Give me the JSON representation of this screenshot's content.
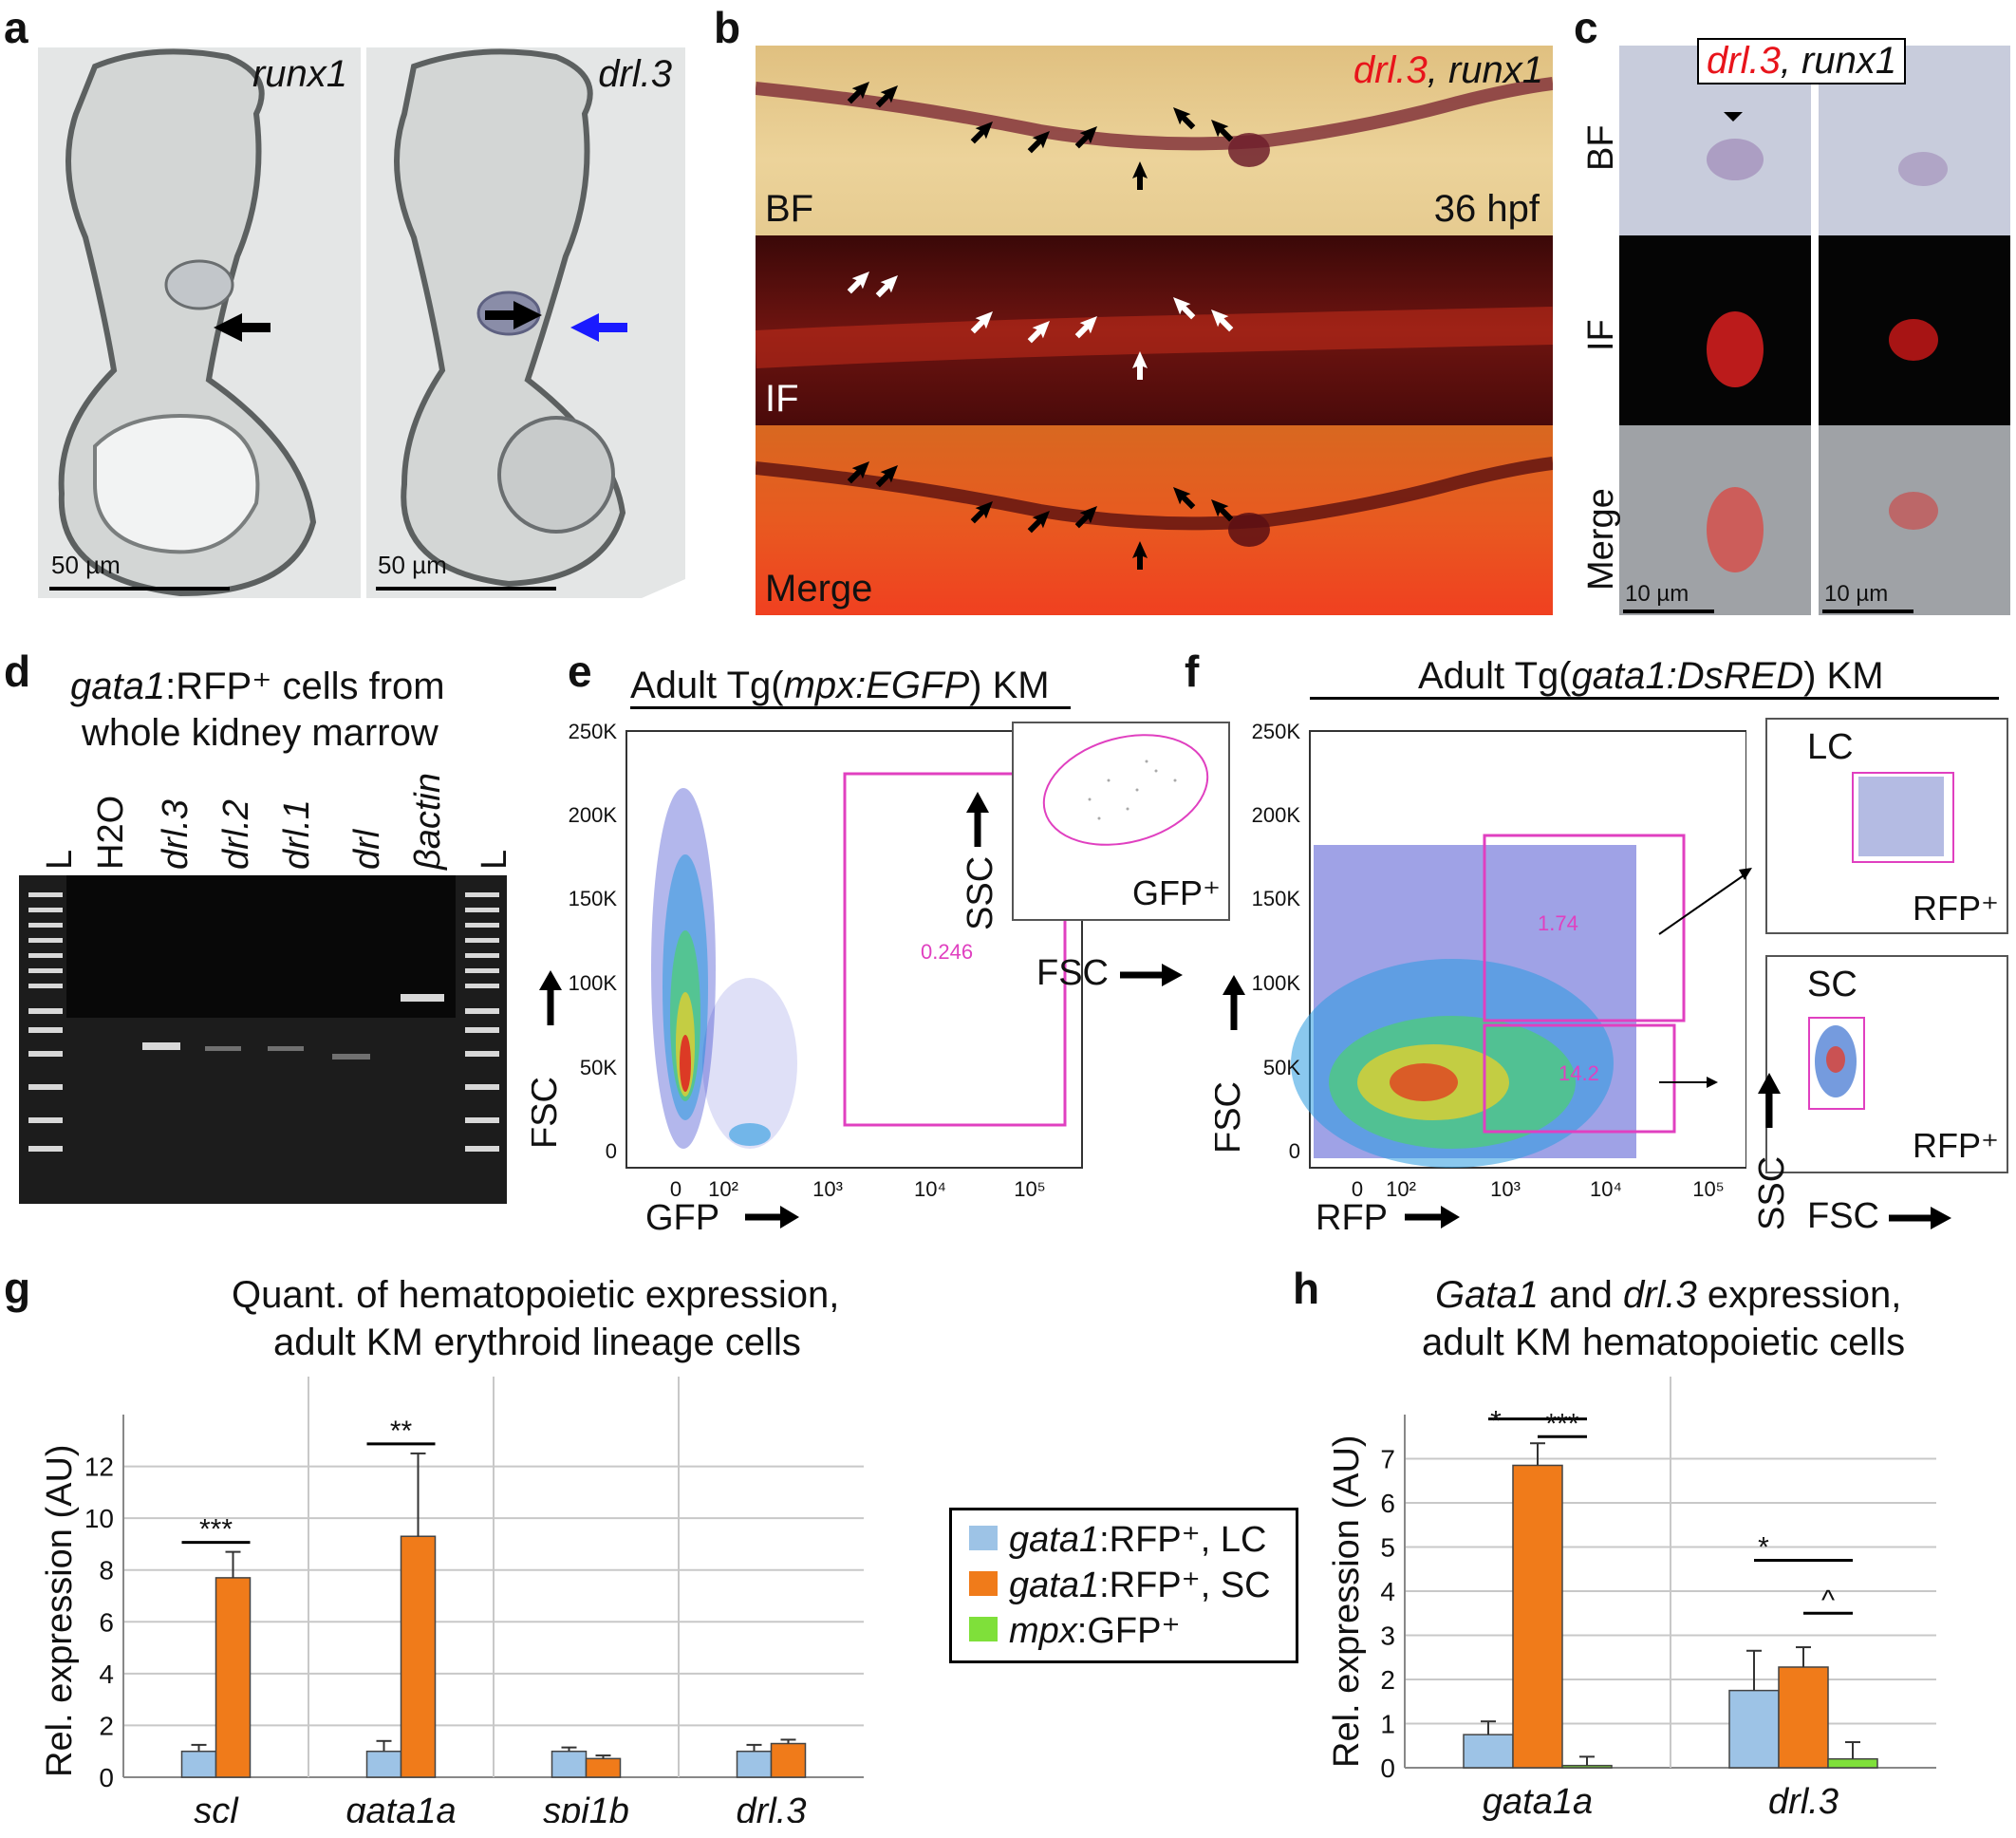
{
  "panel_labels": {
    "a": "a",
    "b": "b",
    "c": "c",
    "d": "d",
    "e": "e",
    "f": "f",
    "g": "g",
    "h": "h"
  },
  "panel_a": {
    "left_label": "runx1",
    "right_label": "drl.3",
    "scale_left": "50 µm",
    "scale_right": "50 µm"
  },
  "panel_b": {
    "title_red": "drl.3",
    "title_sep": ", ",
    "title_black": "runx1",
    "bf": "BF",
    "hpf": "36 hpf",
    "if": "IF",
    "merge": "Merge"
  },
  "panel_c": {
    "title_red": "drl.3",
    "title_sep": ", ",
    "title_black": "runx1",
    "row_bf": "BF",
    "row_if": "IF",
    "row_merge": "Merge",
    "scale_left": "10 µm",
    "scale_right": "10 µm"
  },
  "panel_d": {
    "title_it": "gata1",
    "title_rest": ":RFP⁺ cells from",
    "title_line2": "whole kidney marrow",
    "lanes": [
      "L",
      "H2O",
      "drl.3",
      "drl.2",
      "drl.1",
      "drl",
      "βactin",
      "L"
    ]
  },
  "panel_e": {
    "title_pre": "Adult Tg(",
    "title_it": "mpx:EGFP",
    "title_post": ") KM",
    "y_ticks": [
      "250K",
      "200K",
      "150K",
      "100K",
      "50K",
      "0"
    ],
    "x_ticks": [
      "0",
      "10²",
      "10³",
      "10⁴",
      "10⁵"
    ],
    "y_axis": "FSC",
    "x_axis": "GFP",
    "gate_value": "0.246",
    "inset_y": "SSC",
    "inset_x": "FSC",
    "inset_label": "GFP⁺"
  },
  "panel_f": {
    "title_pre": "Adult Tg(",
    "title_it": "gata1:DsRED",
    "title_post": ") KM",
    "y_ticks": [
      "250K",
      "200K",
      "150K",
      "100K",
      "50K",
      "0"
    ],
    "x_ticks": [
      "0",
      "10²",
      "10³",
      "10⁴",
      "10⁵"
    ],
    "y_axis": "FSC",
    "x_axis": "RFP",
    "gate_upper": "1.74",
    "gate_lower": "14.2",
    "inset_top_label": "LC",
    "inset_top_sub": "RFP⁺",
    "inset_bottom_label": "SC",
    "inset_bottom_sub": "RFP⁺",
    "inset_y": "SSC",
    "inset_x": "FSC"
  },
  "legend": {
    "items": [
      {
        "it": "gata1",
        "rest": ":RFP⁺, LC",
        "color": "#9dc3e6"
      },
      {
        "it": "gata1",
        "rest": ":RFP⁺, SC",
        "color": "#f07b1a"
      },
      {
        "it": "mpx",
        "rest": ":GFP⁺",
        "color": "#7fe03a"
      }
    ]
  },
  "chart_data": [
    {
      "type": "bar",
      "title": "Quant. of hematopoietic expression, adult KM erythroid lineage cells",
      "ylabel": "Rel. expression (AU)",
      "ylim": [
        0,
        14
      ],
      "yticks": [
        "0",
        "2",
        "4",
        "6",
        "8",
        "10",
        "12"
      ],
      "categories": [
        "scl",
        "gata1a",
        "spi1b",
        "drl.3"
      ],
      "series": [
        {
          "name": "gata1:RFP⁺, LC",
          "color": "#9dc3e6",
          "values": [
            1.0,
            1.0,
            1.0,
            1.0
          ],
          "err": [
            0.25,
            0.4,
            0.15,
            0.25
          ]
        },
        {
          "name": "gata1:RFP⁺, SC",
          "color": "#f07b1a",
          "values": [
            7.7,
            9.3,
            0.72,
            1.3
          ],
          "err": [
            1.0,
            3.2,
            0.12,
            0.15
          ]
        }
      ],
      "significance": [
        "***",
        "**",
        "",
        ""
      ]
    },
    {
      "type": "bar",
      "title": "Gata1 and drl.3 expression, adult KM hematopoietic cells",
      "ylabel": "Rel. expression (AU)",
      "ylim": [
        0,
        8
      ],
      "yticks": [
        "0",
        "1",
        "2",
        "3",
        "4",
        "5",
        "6",
        "7"
      ],
      "categories": [
        "gata1a",
        "drl.3"
      ],
      "series": [
        {
          "name": "gata1:RFP⁺, LC",
          "color": "#9dc3e6",
          "values": [
            0.75,
            1.75
          ],
          "err": [
            0.3,
            0.9
          ]
        },
        {
          "name": "gata1:RFP⁺, SC",
          "color": "#f07b1a",
          "values": [
            6.85,
            2.28
          ],
          "err": [
            0.5,
            0.45
          ]
        },
        {
          "name": "mpx:GFP⁺",
          "color": "#7fe03a",
          "values": [
            0.05,
            0.2
          ],
          "err": [
            0.2,
            0.38
          ]
        }
      ],
      "significance": [
        "*",
        "***",
        "*",
        "^"
      ]
    }
  ],
  "panel_g_title_line1": "Quant. of hematopoietic expression,",
  "panel_g_title_line2": "adult KM erythroid lineage cells",
  "panel_h_title_it": "Gata1",
  "panel_h_title_mid": " and ",
  "panel_h_title_it2": "drl.3",
  "panel_h_title_post": " expression,",
  "panel_h_title_line2": "adult KM hematopoietic cells"
}
